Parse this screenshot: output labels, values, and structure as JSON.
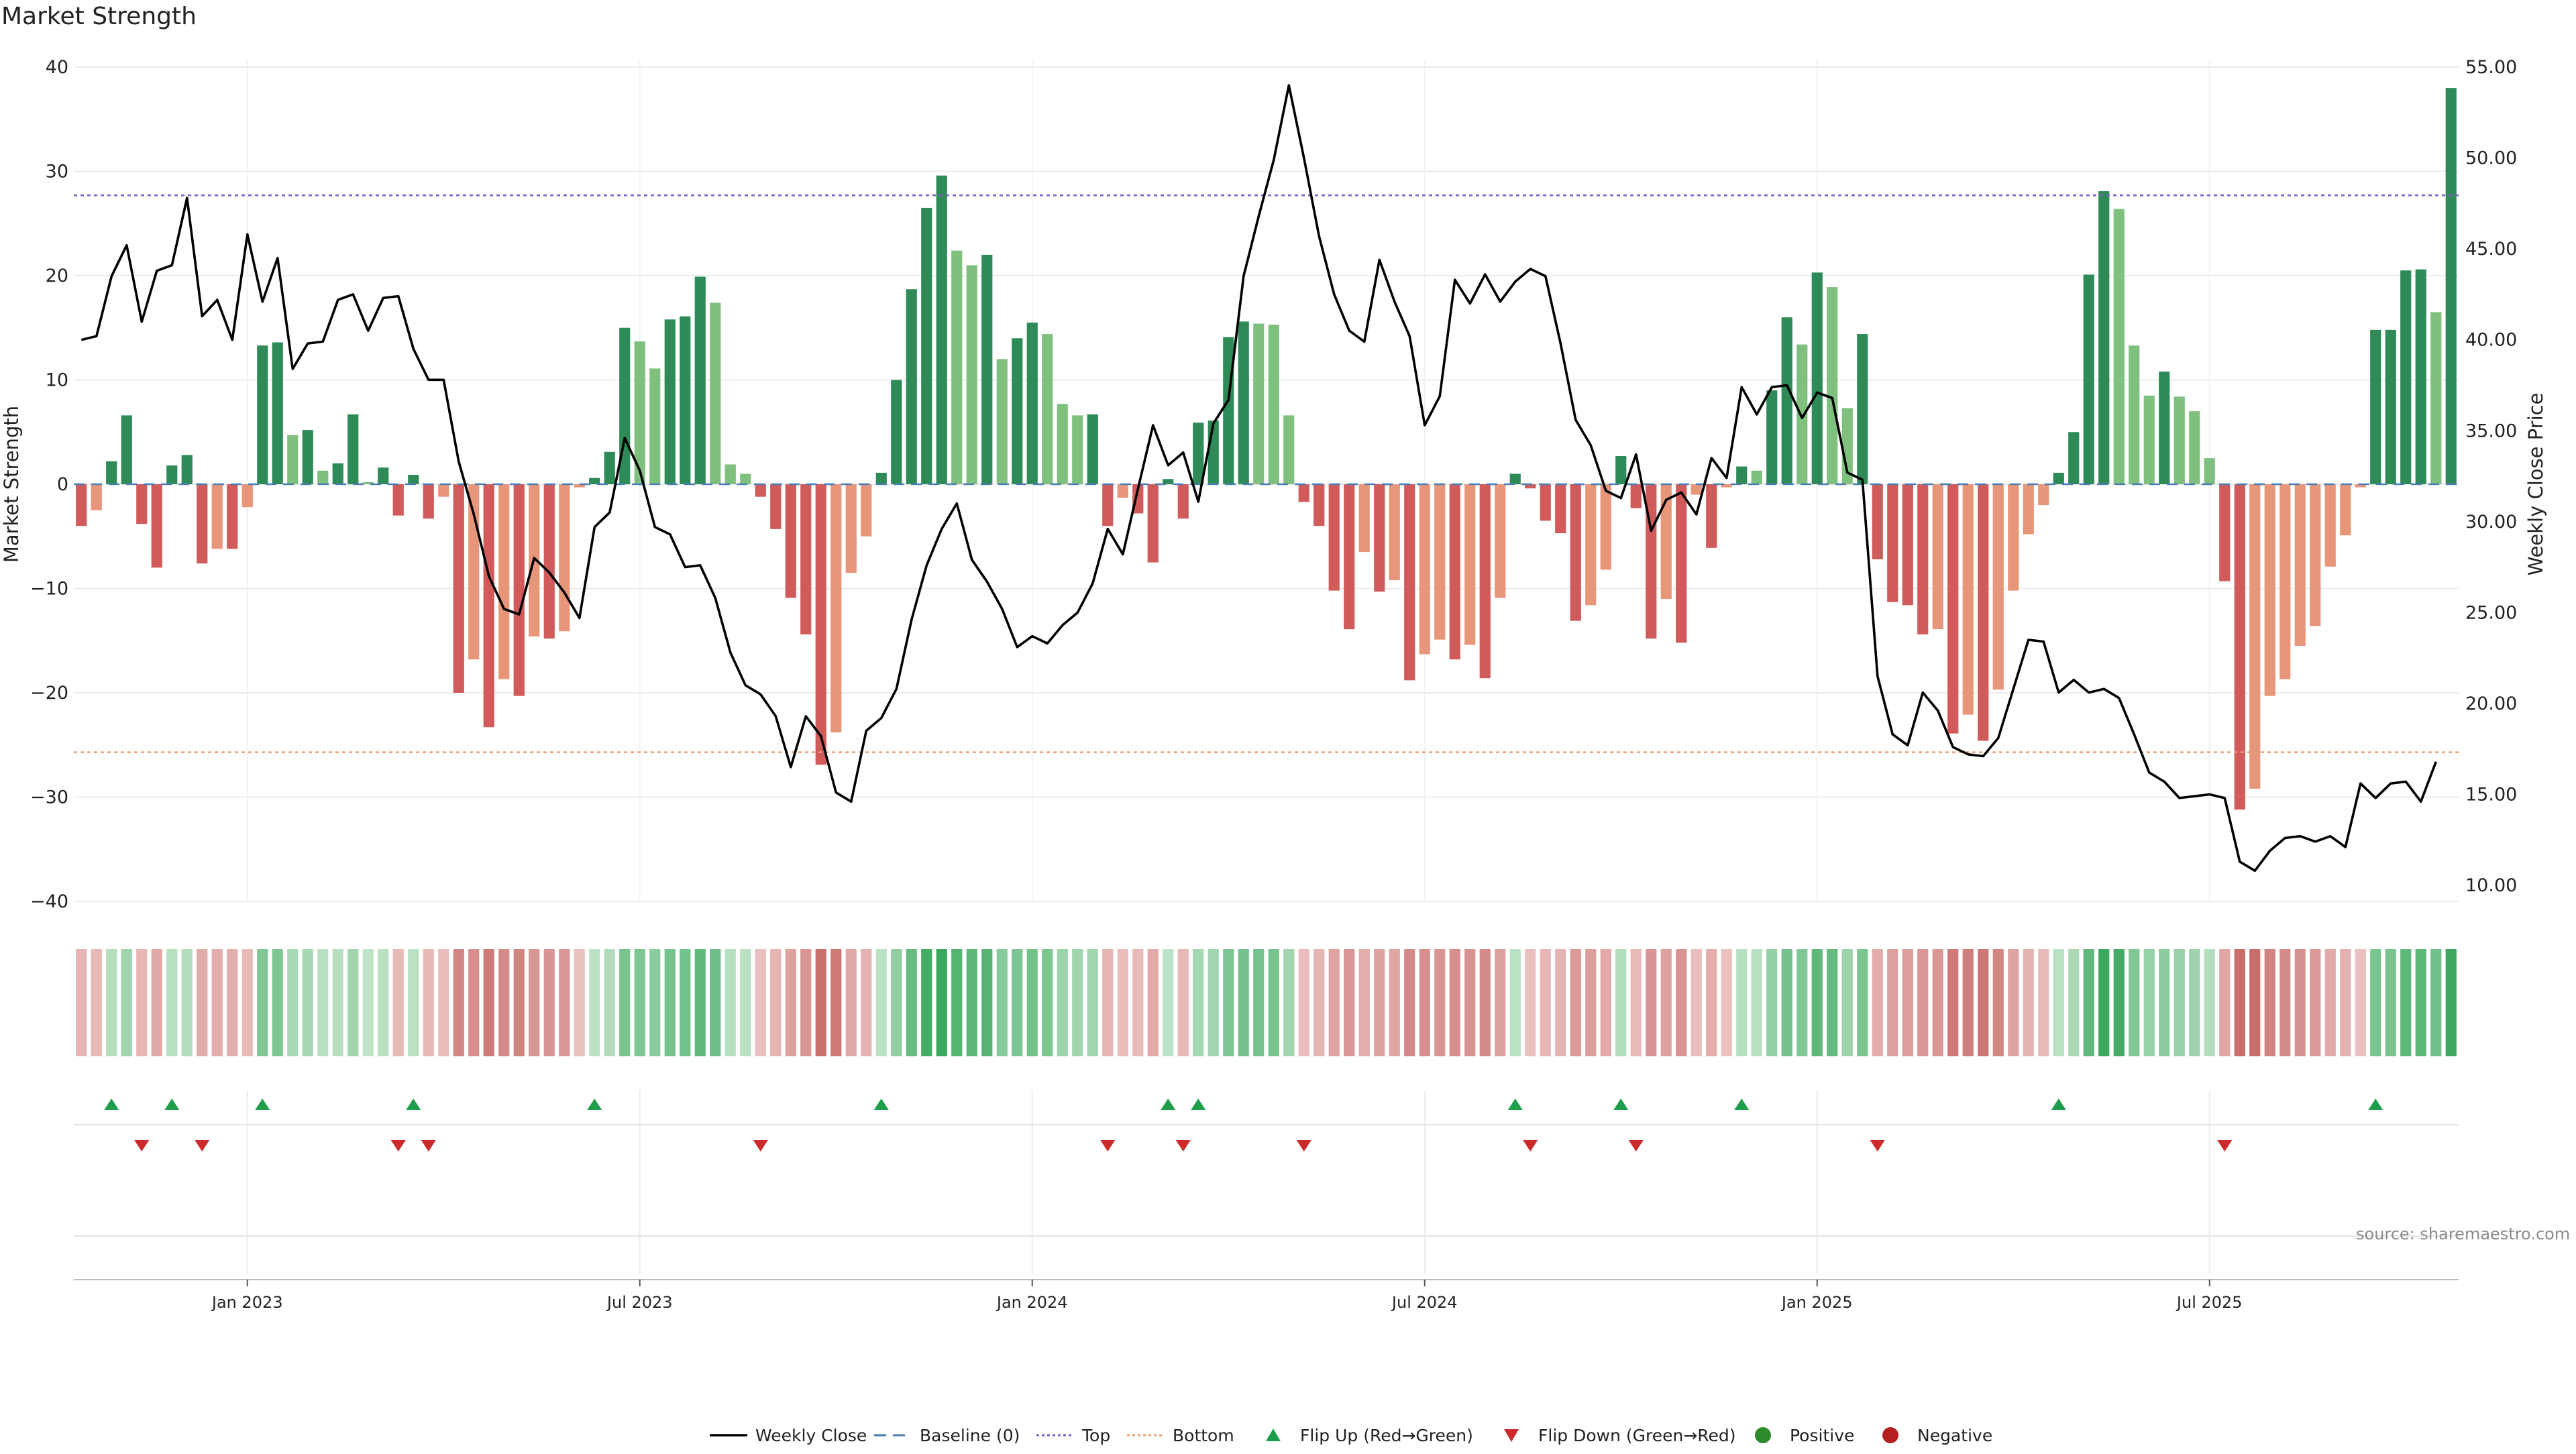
{
  "title": "Market Strength",
  "source": "source: sharemaestro.com",
  "chart_data": {
    "type": "bar",
    "title": "Market Strength",
    "ylabel_left": "Market Strength",
    "ylabel_right": "Weekly Close Price",
    "ylim_left": [
      -40,
      40
    ],
    "ylim_right": [
      10,
      55
    ],
    "yticks_left": [
      40,
      30,
      20,
      10,
      0,
      -10,
      -20,
      -30,
      -40
    ],
    "yticks_right": [
      "55.00",
      "50.00",
      "45.00",
      "40.00",
      "35.00",
      "30.00",
      "25.00",
      "20.00",
      "15.00",
      "10.00"
    ],
    "top_line": 27.7,
    "bottom_line": -25.7,
    "x_ticks": [
      {
        "label": "Jan 2023",
        "week": 11
      },
      {
        "label": "Jul 2023",
        "week": 37
      },
      {
        "label": "Jan 2024",
        "week": 63
      },
      {
        "label": "Jul 2024",
        "week": 89
      },
      {
        "label": "Jan 2025",
        "week": 115
      },
      {
        "label": "Jul 2025",
        "week": 141
      }
    ],
    "strength": [
      -4,
      -2.5,
      2.2,
      6.6,
      -3.8,
      -8,
      1.8,
      2.8,
      -7.6,
      -6.2,
      -6.2,
      -2.2,
      13.3,
      13.6,
      4.7,
      5.2,
      1.3,
      2,
      6.7,
      0,
      1.6,
      -3,
      0.9,
      -3.3,
      -1.2,
      -20,
      -16.8,
      -23.3,
      -18.7,
      -20.3,
      -14.6,
      -14.8,
      -14.1,
      -0.3,
      0.6,
      3.1,
      15,
      13.7,
      11.1,
      15.8,
      16.1,
      19.9,
      17.4,
      1.9,
      1,
      -1.2,
      -4.3,
      -10.9,
      -14.4,
      -26.9,
      -23.8,
      -8.5,
      -5,
      1.1,
      10,
      18.7,
      26.5,
      29.6,
      22.4,
      21,
      22,
      12,
      14,
      15.5,
      14.4,
      7.7,
      6.6,
      6.7,
      -4,
      -1.3,
      -2.8,
      -7.5,
      0.5,
      -3.3,
      5.9,
      6.1,
      14.1,
      15.6,
      15.4,
      15.3,
      6.6,
      -1.7,
      -4,
      -10.2,
      -13.9,
      -6.5,
      -10.3,
      -9.2,
      -18.8,
      -16.3,
      -14.9,
      -16.8,
      -15.4,
      -18.6,
      -10.9,
      1,
      -0.4,
      -3.5,
      -4.7,
      -13.1,
      -11.6,
      -8.2,
      2.7,
      -2.3,
      -14.8,
      -11,
      -15.2,
      -1,
      -6.1,
      -0.3,
      1.7,
      1.3,
      9,
      16,
      13.4,
      20.3,
      18.9,
      7.3,
      14.4,
      -7.2,
      -11.3,
      -11.6,
      -14.4,
      -13.9,
      -23.9,
      -22.1,
      -24.6,
      -19.7,
      -10.2,
      -4.8,
      -2,
      1.1,
      5,
      20.1,
      28.1,
      26.4,
      13.3,
      8.5,
      10.8,
      8.4,
      7,
      2.5,
      -9.3,
      -31.2,
      -29.2,
      -20.3,
      -18.7,
      -15.5,
      -13.6,
      -7.9,
      -4.9,
      -0.3,
      14.8,
      14.8,
      20.5,
      20.6,
      16.5,
      38
    ],
    "weekly_close": [
      40,
      40.2,
      43.5,
      45.2,
      41,
      43.8,
      44.1,
      47.8,
      41.3,
      42.2,
      40,
      45.8,
      42.1,
      44.5,
      38.4,
      39.8,
      39.9,
      42.2,
      42.5,
      40.5,
      42.3,
      42.4,
      39.5,
      37.8,
      37.8,
      33.3,
      30.4,
      27,
      25.2,
      24.9,
      28,
      27.2,
      26.1,
      24.7,
      29.7,
      30.5,
      34.6,
      32.8,
      29.7,
      29.3,
      27.5,
      27.6,
      25.8,
      22.8,
      21,
      20.5,
      19.3,
      16.5,
      19.3,
      18.2,
      15.1,
      14.6,
      18.5,
      19.2,
      20.8,
      24.6,
      27.6,
      29.6,
      31,
      27.9,
      26.7,
      25.2,
      23.1,
      23.7,
      23.3,
      24.3,
      25,
      26.6,
      29.6,
      28.2,
      31.8,
      35.3,
      33.1,
      33.8,
      31.1,
      35.4,
      36.7,
      43.5,
      46.8,
      49.9,
      54,
      50,
      45.7,
      42.5,
      40.5,
      39.9,
      44.4,
      42.1,
      40.2,
      35.3,
      36.9,
      43.3,
      42,
      43.6,
      42.1,
      43.2,
      43.9,
      43.5,
      39.8,
      35.6,
      34.2,
      31.7,
      31.3,
      33.7,
      29.5,
      31.2,
      31.6,
      30.4,
      33.5,
      32.4,
      37.4,
      35.9,
      37.4,
      37.5,
      35.7,
      37.1,
      36.8,
      32.7,
      32.3,
      21.5,
      18.3,
      17.7,
      20.6,
      19.6,
      17.6,
      17.2,
      17.1,
      18.1,
      20.8,
      23.5,
      23.4,
      20.6,
      21.3,
      20.6,
      20.8,
      20.3,
      18.3,
      16.2,
      15.7,
      14.8,
      14.9,
      15,
      14.8,
      11.3,
      10.8,
      11.9,
      12.6,
      12.7,
      12.4,
      12.7,
      12.1,
      15.6,
      14.8,
      15.6,
      15.7,
      14.6,
      16.8
    ]
  },
  "legend": [
    {
      "label": "Weekly Close",
      "marker": "line",
      "color": "#000000"
    },
    {
      "label": "Baseline (0)",
      "marker": "dash",
      "color": "#4a7db5"
    },
    {
      "label": "Top",
      "marker": "dot",
      "color": "#7d5cc6"
    },
    {
      "label": "Bottom",
      "marker": "dot",
      "color": "#e8a070"
    },
    {
      "label": "Flip Up (Red→Green)",
      "marker": "triangle-up",
      "color": "#1e9e4a"
    },
    {
      "label": "Flip Down (Green→Red)",
      "marker": "triangle-down",
      "color": "#cc2b2b"
    },
    {
      "label": "Positive",
      "marker": "circle",
      "color": "#2d8a2d"
    },
    {
      "label": "Negative",
      "marker": "circle",
      "color": "#b51f1f"
    }
  ],
  "colors": {
    "strong_pos": "#2e8b57",
    "weak_pos": "#7fc07f",
    "strong_neg": "#d15b5b",
    "weak_neg": "#e8967a"
  }
}
